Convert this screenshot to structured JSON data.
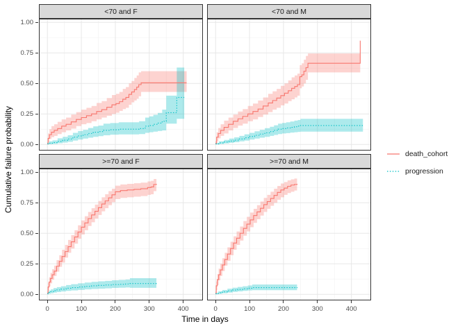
{
  "figure": {
    "background": "#FFFFFF",
    "panel": {
      "background": "#FFFFFF",
      "border_color": "#333333",
      "grid_major_color": "#E7E7E7",
      "grid_minor_color": "#F3F3F3"
    },
    "strip": {
      "background": "#D9D9D9",
      "border_color": "#333333",
      "text_color": "#1A1A1A"
    },
    "colors": {
      "death_cohort": "#F8766D",
      "progression": "#00BFC4",
      "ribbon_opacity": 0.32,
      "axis_text": "#4D4D4D",
      "axis_title": "#000000"
    }
  },
  "axes": {
    "x_title": "Time in days",
    "y_title": "Cumulative failure probability",
    "x_tick_values": [
      0,
      100,
      200,
      300,
      400
    ],
    "x_tick_labels": [
      "0",
      "100",
      "200",
      "300",
      "400"
    ],
    "x_minor_values": [
      50,
      150,
      250,
      350,
      450
    ],
    "y_tick_values": [
      0,
      0.25,
      0.5,
      0.75,
      1
    ],
    "y_tick_labels": [
      "0.00",
      "0.25",
      "0.50",
      "0.75",
      "1.00"
    ],
    "y_minor_values": [
      0.125,
      0.375,
      0.625,
      0.875
    ],
    "x_domain": [
      -25,
      458
    ],
    "y_domain": [
      -0.05,
      1.03
    ]
  },
  "legend": {
    "items": [
      {
        "name": "death_cohort",
        "label": "death_cohort",
        "color": "#F8766D",
        "linetype": "solid"
      },
      {
        "name": "progression",
        "label": "progression",
        "color": "#00BFC4",
        "linetype": "dotted"
      }
    ]
  },
  "chart_data": {
    "type": "line",
    "subtype": "stepped-cumulative-incidence-with-confidence-ribbons",
    "xlabel": "Time in days",
    "ylabel": "Cumulative failure probability",
    "xlim": [
      -25,
      458
    ],
    "ylim": [
      -0.05,
      1.03
    ],
    "grid": true,
    "legend_position": "right",
    "facets": [
      {
        "label": "<70 and F",
        "series": [
          {
            "name": "death_cohort",
            "t": [
              0,
              2,
              6,
              12,
              20,
              30,
              42,
              55,
              70,
              85,
              100,
              115,
              130,
              145,
              160,
              175,
              190,
              202,
              212,
              222,
              231,
              240,
              248,
              256,
              263,
              269,
              276,
              410
            ],
            "v": [
              0.005,
              0.05,
              0.08,
              0.1,
              0.115,
              0.13,
              0.15,
              0.165,
              0.185,
              0.205,
              0.22,
              0.235,
              0.25,
              0.27,
              0.285,
              0.305,
              0.325,
              0.335,
              0.35,
              0.37,
              0.385,
              0.41,
              0.43,
              0.45,
              0.47,
              0.49,
              0.505,
              0.505
            ],
            "lo": [
              0,
              0.02,
              0.045,
              0.06,
              0.07,
              0.085,
              0.1,
              0.115,
              0.13,
              0.15,
              0.165,
              0.175,
              0.19,
              0.205,
              0.22,
              0.235,
              0.25,
              0.26,
              0.275,
              0.29,
              0.3,
              0.325,
              0.345,
              0.36,
              0.375,
              0.395,
              0.43,
              0.43
            ],
            "hi": [
              0.02,
              0.09,
              0.125,
              0.15,
              0.165,
              0.185,
              0.205,
              0.22,
              0.245,
              0.265,
              0.285,
              0.3,
              0.315,
              0.34,
              0.355,
              0.38,
              0.405,
              0.415,
              0.43,
              0.455,
              0.47,
              0.5,
              0.52,
              0.545,
              0.565,
              0.59,
              0.6,
              0.6
            ]
          },
          {
            "name": "progression",
            "t": [
              0,
              5,
              15,
              30,
              45,
              60,
              75,
              90,
              105,
              120,
              135,
              150,
              165,
              185,
              210,
              240,
              270,
              288,
              300,
              312,
              325,
              338,
              350,
              381,
              403
            ],
            "v": [
              0.005,
              0.01,
              0.015,
              0.025,
              0.035,
              0.045,
              0.06,
              0.07,
              0.08,
              0.09,
              0.1,
              0.105,
              0.115,
              0.12,
              0.125,
              0.125,
              0.13,
              0.15,
              0.155,
              0.165,
              0.175,
              0.19,
              0.26,
              0.385,
              0.385
            ],
            "lo": [
              0,
              0.002,
              0.005,
              0.01,
              0.015,
              0.022,
              0.032,
              0.04,
              0.048,
              0.055,
              0.062,
              0.068,
              0.075,
              0.08,
              0.082,
              0.082,
              0.085,
              0.095,
              0.1,
              0.105,
              0.11,
              0.115,
              0.17,
              0.21,
              0.21
            ],
            "hi": [
              0.015,
              0.025,
              0.033,
              0.05,
              0.062,
              0.075,
              0.095,
              0.11,
              0.12,
              0.135,
              0.148,
              0.155,
              0.17,
              0.175,
              0.182,
              0.182,
              0.19,
              0.22,
              0.23,
              0.243,
              0.258,
              0.285,
              0.4,
              0.63,
              0.63
            ]
          }
        ]
      },
      {
        "label": "<70 and M",
        "series": [
          {
            "name": "death_cohort",
            "t": [
              0,
              3,
              8,
              15,
              25,
              38,
              52,
              66,
              80,
              95,
              110,
              125,
              140,
              155,
              168,
              180,
              192,
              203,
              214,
              224,
              233,
              241,
              248,
              254,
              260,
              266,
              272,
              424,
              426
            ],
            "v": [
              0.01,
              0.06,
              0.09,
              0.115,
              0.14,
              0.165,
              0.19,
              0.21,
              0.23,
              0.25,
              0.27,
              0.29,
              0.315,
              0.34,
              0.36,
              0.38,
              0.4,
              0.42,
              0.44,
              0.46,
              0.475,
              0.49,
              0.555,
              0.57,
              0.6,
              0.63,
              0.665,
              0.665,
              0.85
            ],
            "lo": [
              0,
              0.025,
              0.05,
              0.07,
              0.09,
              0.115,
              0.135,
              0.155,
              0.17,
              0.19,
              0.205,
              0.225,
              0.245,
              0.265,
              0.285,
              0.3,
              0.32,
              0.335,
              0.355,
              0.37,
              0.385,
              0.4,
              0.46,
              0.475,
              0.5,
              0.53,
              0.59,
              0.59,
              0.59
            ],
            "hi": [
              0.03,
              0.1,
              0.135,
              0.165,
              0.195,
              0.22,
              0.245,
              0.27,
              0.29,
              0.315,
              0.335,
              0.36,
              0.385,
              0.415,
              0.435,
              0.455,
              0.48,
              0.5,
              0.525,
              0.55,
              0.565,
              0.58,
              0.65,
              0.665,
              0.695,
              0.725,
              0.745,
              0.745,
              0.745
            ]
          },
          {
            "name": "progression",
            "t": [
              0,
              10,
              25,
              40,
              55,
              70,
              85,
              100,
              115,
              130,
              145,
              160,
              172,
              184,
              196,
              208,
              220,
              232,
              242,
              250,
              434
            ],
            "v": [
              0.005,
              0.012,
              0.02,
              0.028,
              0.035,
              0.045,
              0.055,
              0.065,
              0.075,
              0.085,
              0.095,
              0.105,
              0.115,
              0.125,
              0.13,
              0.135,
              0.14,
              0.145,
              0.15,
              0.155,
              0.155
            ],
            "lo": [
              0,
              0.004,
              0.008,
              0.013,
              0.018,
              0.025,
              0.032,
              0.04,
              0.048,
              0.055,
              0.062,
              0.07,
              0.078,
              0.085,
              0.09,
              0.093,
              0.097,
              0.1,
              0.103,
              0.105,
              0.105
            ],
            "hi": [
              0.013,
              0.025,
              0.037,
              0.048,
              0.058,
              0.07,
              0.083,
              0.095,
              0.108,
              0.12,
              0.133,
              0.145,
              0.157,
              0.17,
              0.176,
              0.182,
              0.188,
              0.195,
              0.2,
              0.21,
              0.21
            ]
          }
        ]
      },
      {
        "label": ">=70 and F",
        "series": [
          {
            "name": "death_cohort",
            "t": [
              0,
              2,
              5,
              9,
              14,
              20,
              27,
              35,
              43,
              52,
              61,
              70,
              80,
              90,
              100,
              110,
              120,
              130,
              140,
              150,
              160,
              170,
              180,
              190,
              200,
              215,
              235,
              255,
              275,
              295,
              305,
              313,
              321
            ],
            "v": [
              0.01,
              0.06,
              0.1,
              0.13,
              0.16,
              0.19,
              0.23,
              0.27,
              0.31,
              0.35,
              0.39,
              0.43,
              0.47,
              0.51,
              0.55,
              0.585,
              0.62,
              0.65,
              0.68,
              0.71,
              0.74,
              0.765,
              0.79,
              0.815,
              0.84,
              0.85,
              0.855,
              0.86,
              0.865,
              0.875,
              0.88,
              0.9,
              0.905
            ],
            "lo": [
              0,
              0.03,
              0.065,
              0.09,
              0.12,
              0.15,
              0.185,
              0.225,
              0.26,
              0.3,
              0.34,
              0.375,
              0.415,
              0.455,
              0.49,
              0.525,
              0.56,
              0.59,
              0.62,
              0.65,
              0.68,
              0.705,
              0.73,
              0.755,
              0.78,
              0.79,
              0.795,
              0.8,
              0.805,
              0.815,
              0.82,
              0.845,
              0.85
            ],
            "hi": [
              0.025,
              0.095,
              0.14,
              0.175,
              0.205,
              0.235,
              0.28,
              0.32,
              0.365,
              0.405,
              0.445,
              0.485,
              0.525,
              0.565,
              0.605,
              0.64,
              0.675,
              0.705,
              0.735,
              0.765,
              0.795,
              0.82,
              0.845,
              0.865,
              0.89,
              0.9,
              0.905,
              0.91,
              0.915,
              0.925,
              0.93,
              0.945,
              0.95
            ]
          },
          {
            "name": "progression",
            "t": [
              0,
              4,
              10,
              18,
              28,
              40,
              55,
              70,
              90,
              110,
              130,
              150,
              170,
              190,
              210,
              230,
              243,
              321
            ],
            "v": [
              0.005,
              0.015,
              0.022,
              0.03,
              0.036,
              0.042,
              0.05,
              0.055,
              0.06,
              0.065,
              0.07,
              0.073,
              0.076,
              0.08,
              0.082,
              0.085,
              0.088,
              0.09
            ],
            "lo": [
              0,
              0.005,
              0.009,
              0.014,
              0.018,
              0.023,
              0.028,
              0.032,
              0.036,
              0.04,
              0.044,
              0.046,
              0.049,
              0.052,
              0.054,
              0.056,
              0.053,
              0.053
            ],
            "hi": [
              0.013,
              0.03,
              0.04,
              0.051,
              0.059,
              0.066,
              0.076,
              0.083,
              0.09,
              0.096,
              0.102,
              0.106,
              0.11,
              0.115,
              0.118,
              0.121,
              0.132,
              0.132
            ]
          }
        ]
      },
      {
        "label": ">=70 and M",
        "series": [
          {
            "name": "death_cohort",
            "t": [
              0,
              2,
              5,
              9,
              14,
              20,
              27,
              35,
              44,
              53,
              62,
              72,
              82,
              92,
              102,
              112,
              122,
              132,
              142,
              152,
              162,
              172,
              182,
              192,
              202,
              212,
              222,
              232,
              240
            ],
            "v": [
              0.01,
              0.07,
              0.12,
              0.16,
              0.2,
              0.24,
              0.285,
              0.33,
              0.375,
              0.42,
              0.46,
              0.5,
              0.54,
              0.575,
              0.61,
              0.645,
              0.675,
              0.705,
              0.735,
              0.76,
              0.785,
              0.81,
              0.835,
              0.855,
              0.87,
              0.885,
              0.895,
              0.9,
              0.905
            ],
            "lo": [
              0,
              0.035,
              0.075,
              0.115,
              0.15,
              0.19,
              0.235,
              0.275,
              0.32,
              0.365,
              0.405,
              0.44,
              0.48,
              0.515,
              0.55,
              0.585,
              0.615,
              0.645,
              0.675,
              0.7,
              0.725,
              0.75,
              0.775,
              0.795,
              0.815,
              0.83,
              0.84,
              0.85,
              0.855
            ],
            "hi": [
              0.025,
              0.105,
              0.165,
              0.21,
              0.25,
              0.295,
              0.34,
              0.385,
              0.43,
              0.475,
              0.515,
              0.555,
              0.6,
              0.635,
              0.67,
              0.7,
              0.73,
              0.76,
              0.79,
              0.815,
              0.84,
              0.865,
              0.888,
              0.908,
              0.92,
              0.933,
              0.942,
              0.948,
              0.95
            ]
          },
          {
            "name": "progression",
            "t": [
              0,
              8,
              20,
              35,
              50,
              65,
              80,
              95,
              108,
              240
            ],
            "v": [
              0.005,
              0.012,
              0.02,
              0.028,
              0.035,
              0.04,
              0.045,
              0.05,
              0.055,
              0.058
            ],
            "lo": [
              0,
              0.004,
              0.009,
              0.014,
              0.02,
              0.024,
              0.028,
              0.032,
              0.034,
              0.034
            ],
            "hi": [
              0.012,
              0.024,
              0.035,
              0.046,
              0.054,
              0.06,
              0.066,
              0.072,
              0.08,
              0.082
            ]
          }
        ]
      }
    ]
  }
}
